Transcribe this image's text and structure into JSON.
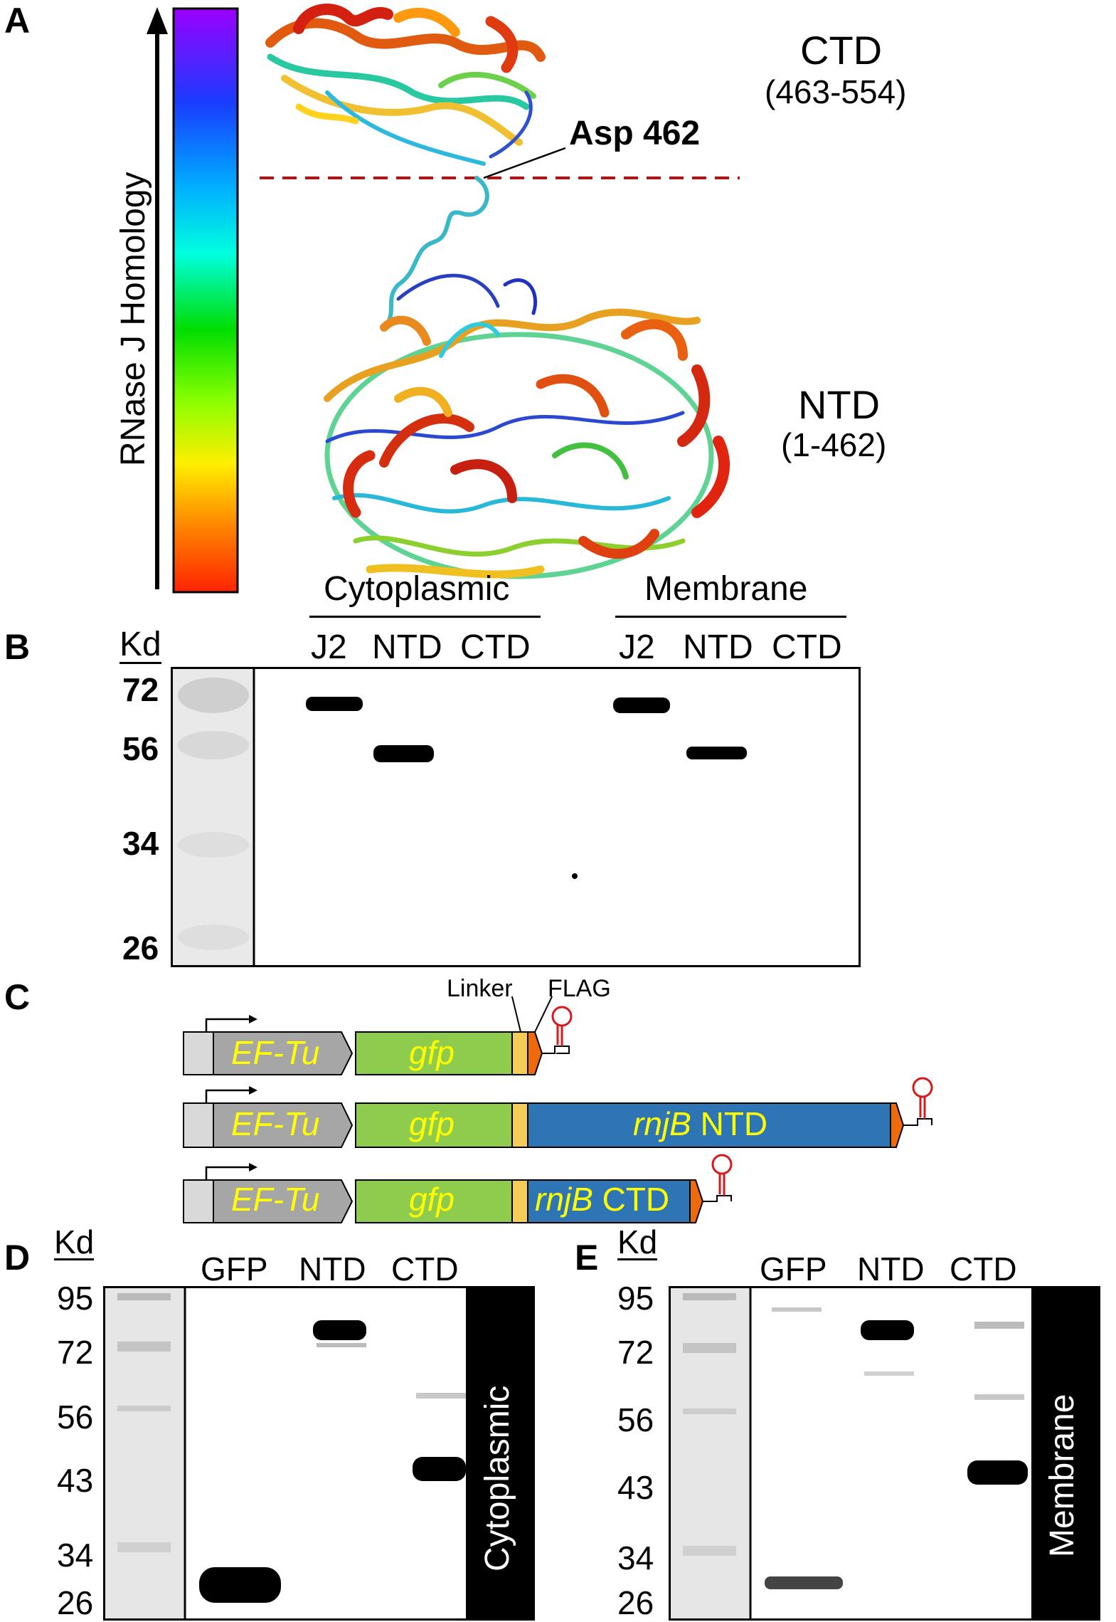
{
  "panel_a": {
    "letter": "A",
    "colorbar_label": "RNase J Homology",
    "colorbar_stops": [
      "#ff2a00",
      "#ff8800",
      "#ffee00",
      "#88ff00",
      "#00dd00",
      "#00ffdd",
      "#00aaff",
      "#1a3cff",
      "#6a00ff",
      "#9a00ff"
    ],
    "ctd_label": "CTD",
    "ctd_range": "(463-554)",
    "ntd_label": "NTD",
    "ntd_range": "(1-462)",
    "asp_label": "Asp 462",
    "divider_color": "#b01515"
  },
  "panel_b": {
    "letter": "B",
    "kd_header": "Kd",
    "group_left": "Cytoplasmic",
    "group_right": "Membrane",
    "lanes": [
      "J2",
      "NTD",
      "CTD",
      "J2",
      "NTD",
      "CTD"
    ],
    "markers": [
      "72",
      "56",
      "34",
      "26"
    ]
  },
  "panel_c": {
    "letter": "C",
    "linker": "Linker",
    "flag": "FLAG",
    "promoter": "EF-Tu",
    "gene": "gfp",
    "construct_ntd_italic": "rnjB",
    "construct_ntd_plain": "NTD",
    "construct_ctd_italic": "rnjB",
    "construct_ctd_plain": "CTD",
    "colors": {
      "gfp": "#8fcc4e",
      "rnjB": "#2e75b6",
      "linker": "#f6cc58",
      "flag": "#ef6a0c",
      "promoter": "#a6a6a6",
      "terminator": "#d7191c",
      "text_yellow": "#ffff00"
    }
  },
  "panel_d": {
    "letter": "D",
    "kd_header": "Kd",
    "lanes": [
      "GFP",
      "NTD",
      "CTD"
    ],
    "markers": [
      "95",
      "72",
      "56",
      "43",
      "34",
      "26"
    ],
    "side_label": "Cytoplasmic"
  },
  "panel_e": {
    "letter": "E",
    "kd_header": "Kd",
    "lanes": [
      "GFP",
      "NTD",
      "CTD"
    ],
    "markers": [
      "95",
      "72",
      "56",
      "43",
      "34",
      "26"
    ],
    "side_label": "Membrane"
  }
}
